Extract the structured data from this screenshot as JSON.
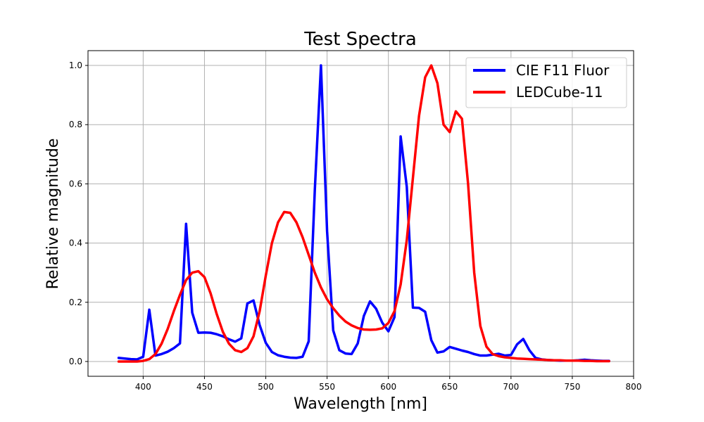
{
  "chart_data": {
    "type": "line",
    "title": "Test Spectra",
    "xlabel": "Wavelength [nm]",
    "ylabel": "Relative magnitude",
    "xlim": [
      355,
      800
    ],
    "ylim": [
      -0.05,
      1.05
    ],
    "xticks": [
      400,
      450,
      500,
      550,
      600,
      650,
      700,
      750,
      800
    ],
    "yticks": [
      0.0,
      0.2,
      0.4,
      0.6,
      0.8,
      1.0
    ],
    "grid": true,
    "legend_position": "top-right",
    "series": [
      {
        "name": "CIE F11 Fluor",
        "color": "#0000ff",
        "x": [
          380,
          385,
          390,
          395,
          400,
          405,
          410,
          415,
          420,
          425,
          430,
          435,
          440,
          445,
          450,
          455,
          460,
          465,
          470,
          475,
          480,
          485,
          490,
          495,
          500,
          505,
          510,
          515,
          520,
          525,
          530,
          535,
          540,
          545,
          550,
          555,
          560,
          565,
          570,
          575,
          580,
          585,
          590,
          595,
          600,
          605,
          610,
          615,
          620,
          625,
          630,
          635,
          640,
          645,
          650,
          655,
          660,
          665,
          670,
          675,
          680,
          685,
          690,
          695,
          700,
          705,
          710,
          715,
          720,
          725,
          730,
          735,
          740,
          745,
          750,
          755,
          760,
          765,
          770,
          775,
          780
        ],
        "y": [
          0.012,
          0.01,
          0.008,
          0.007,
          0.016,
          0.175,
          0.02,
          0.025,
          0.033,
          0.045,
          0.061,
          0.465,
          0.165,
          0.097,
          0.098,
          0.097,
          0.092,
          0.085,
          0.075,
          0.067,
          0.078,
          0.196,
          0.206,
          0.123,
          0.063,
          0.032,
          0.021,
          0.016,
          0.013,
          0.012,
          0.016,
          0.068,
          0.58,
          1.0,
          0.44,
          0.105,
          0.038,
          0.027,
          0.025,
          0.061,
          0.154,
          0.203,
          0.178,
          0.131,
          0.102,
          0.15,
          0.76,
          0.59,
          0.182,
          0.181,
          0.168,
          0.072,
          0.03,
          0.034,
          0.049,
          0.043,
          0.037,
          0.032,
          0.025,
          0.02,
          0.02,
          0.023,
          0.026,
          0.02,
          0.022,
          0.058,
          0.076,
          0.038,
          0.012,
          0.007,
          0.005,
          0.004,
          0.003,
          0.003,
          0.003,
          0.004,
          0.006,
          0.004,
          0.003,
          0.002,
          0.002
        ]
      },
      {
        "name": "LEDCube-11",
        "color": "#ff0000",
        "x": [
          380,
          385,
          390,
          395,
          400,
          405,
          410,
          415,
          420,
          425,
          430,
          435,
          440,
          445,
          450,
          455,
          460,
          465,
          470,
          475,
          480,
          485,
          490,
          495,
          500,
          505,
          510,
          515,
          520,
          525,
          530,
          535,
          540,
          545,
          550,
          555,
          560,
          565,
          570,
          575,
          580,
          585,
          590,
          595,
          600,
          605,
          610,
          615,
          620,
          625,
          630,
          635,
          640,
          645,
          650,
          655,
          660,
          665,
          670,
          675,
          680,
          685,
          690,
          695,
          700,
          705,
          710,
          715,
          720,
          725,
          730,
          735,
          740,
          745,
          750,
          755,
          760,
          765,
          770,
          775,
          780
        ],
        "y": [
          0.0,
          0.0,
          0.0,
          0.0,
          0.002,
          0.008,
          0.025,
          0.06,
          0.11,
          0.17,
          0.225,
          0.275,
          0.3,
          0.305,
          0.285,
          0.23,
          0.16,
          0.1,
          0.06,
          0.038,
          0.032,
          0.045,
          0.085,
          0.17,
          0.29,
          0.4,
          0.47,
          0.505,
          0.502,
          0.47,
          0.42,
          0.36,
          0.3,
          0.25,
          0.21,
          0.18,
          0.155,
          0.135,
          0.122,
          0.113,
          0.108,
          0.107,
          0.108,
          0.112,
          0.13,
          0.17,
          0.26,
          0.41,
          0.62,
          0.83,
          0.96,
          1.0,
          0.94,
          0.8,
          0.775,
          0.845,
          0.82,
          0.6,
          0.3,
          0.12,
          0.05,
          0.025,
          0.018,
          0.014,
          0.012,
          0.01,
          0.009,
          0.008,
          0.007,
          0.006,
          0.005,
          0.004,
          0.004,
          0.003,
          0.003,
          0.003,
          0.002,
          0.002,
          0.001,
          0.001,
          0.001
        ]
      }
    ]
  }
}
